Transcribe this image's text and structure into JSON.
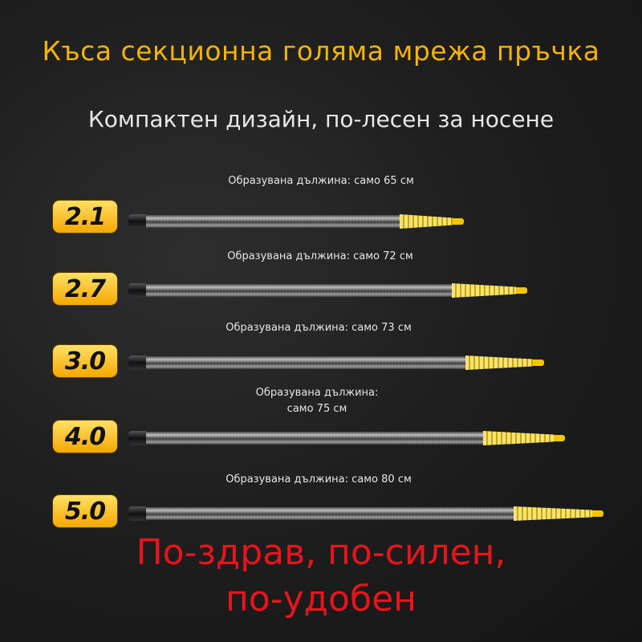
{
  "title": "Къса секционна голяма мрежа пръчка",
  "subtitle": "Компактен дизайн, по-лесен за носене",
  "accent_color": "#f5b400",
  "slogan_color": "#e8141c",
  "rods": [
    {
      "size": "2.1",
      "label": "Образувана дължина: само 65 см"
    },
    {
      "size": "2.7",
      "label": "Образувана дължина: само 72 см"
    },
    {
      "size": "3.0",
      "label": "Образувана дължина: само 73 см"
    },
    {
      "size": "4.0",
      "label": "Образувана дължина:\nсамо 75 см"
    },
    {
      "size": "5.0",
      "label": "Образувана дължина: само 80 см"
    }
  ],
  "slogan": {
    "line1": "По-здрав, по-силен,",
    "line2": "по-удобен"
  }
}
